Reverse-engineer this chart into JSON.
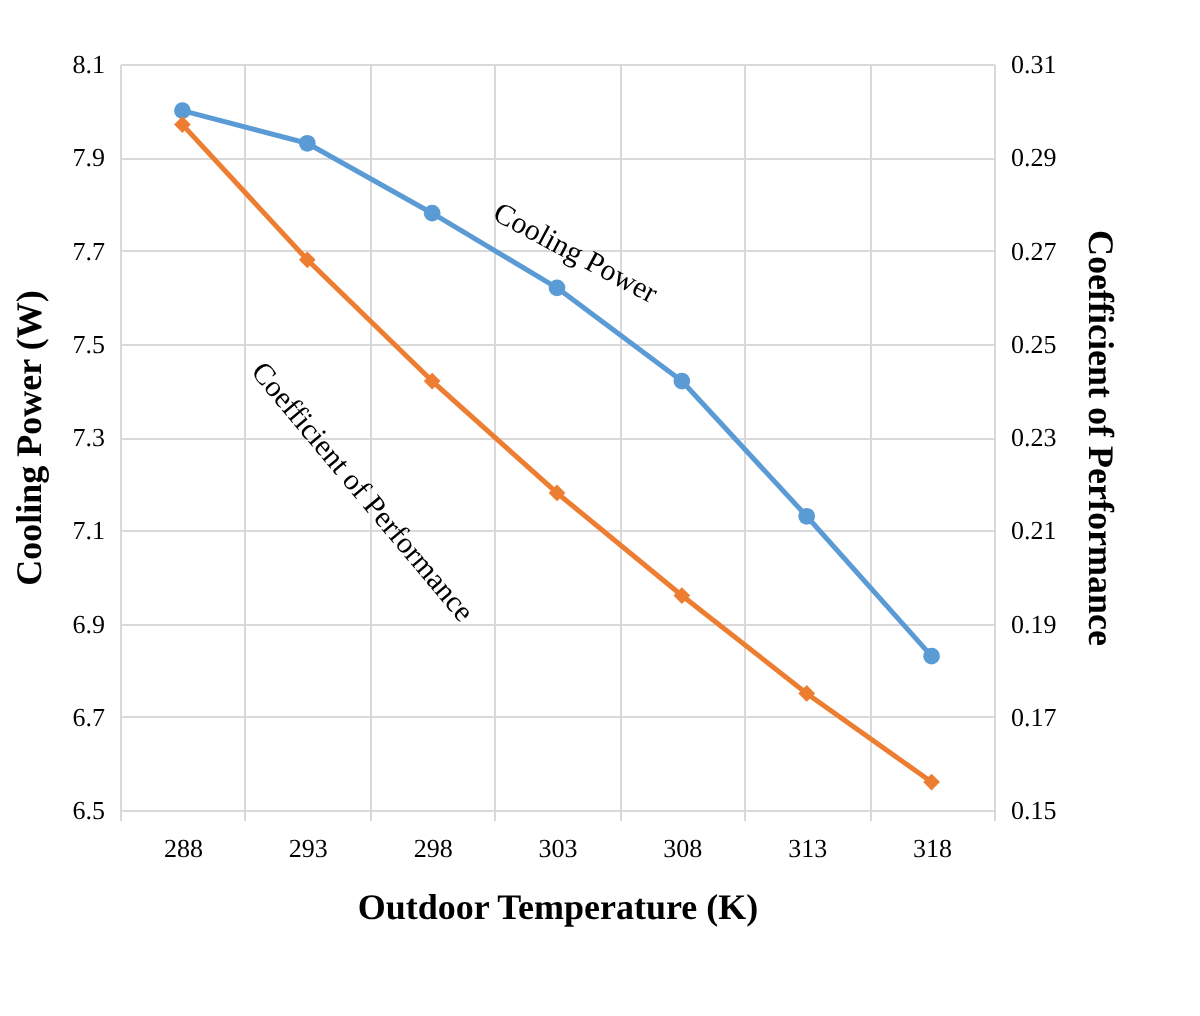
{
  "chart_data": {
    "type": "line",
    "xlabel": "Outdoor Temperature (K)",
    "ylabel": "Cooling Power (W)",
    "y2label": "Coefficient of Performance",
    "categories": [
      "288",
      "293",
      "298",
      "303",
      "308",
      "313",
      "318"
    ],
    "series": [
      {
        "name": "Cooling Power",
        "color": "#5b9bd5",
        "marker": "circle",
        "values": [
          8.0,
          7.93,
          7.78,
          7.62,
          7.42,
          7.13,
          6.83
        ]
      },
      {
        "name": "Coefficient of Performance",
        "color": "#ed7d31",
        "marker": "diamond",
        "axis": "y2",
        "values": [
          0.297,
          0.268,
          0.242,
          0.218,
          0.196,
          0.175,
          0.156
        ]
      }
    ],
    "ylim": [
      6.5,
      8.1
    ],
    "yticks": [
      6.5,
      6.7,
      6.9,
      7.1,
      7.3,
      7.5,
      7.7,
      7.9,
      8.1
    ],
    "y2lim": [
      0.15,
      0.31
    ],
    "y2ticks": [
      0.15,
      0.17,
      0.19,
      0.21,
      0.23,
      0.25,
      0.27,
      0.29,
      0.31
    ],
    "grid": true,
    "line_style": "solid"
  }
}
